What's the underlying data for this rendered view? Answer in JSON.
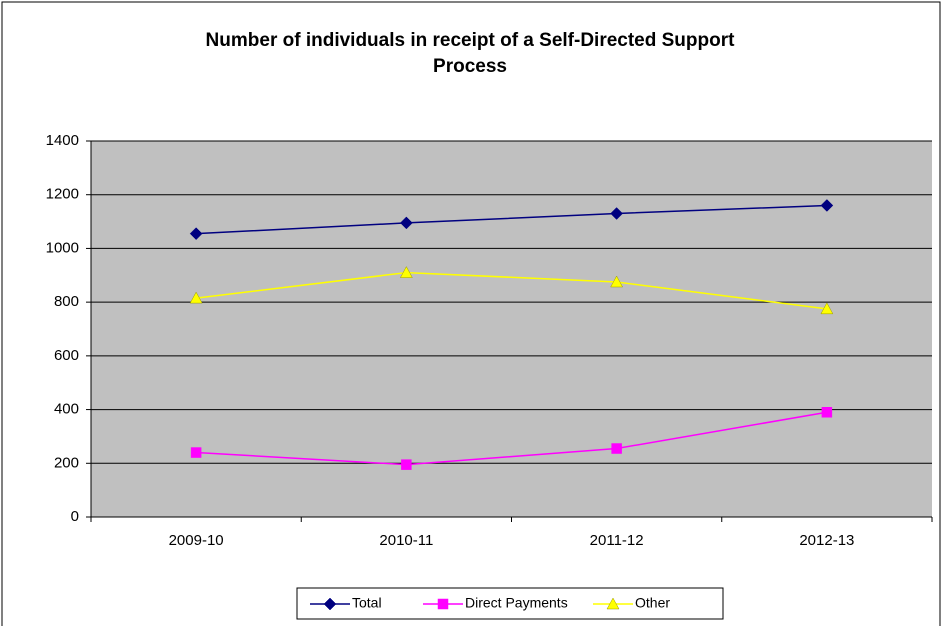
{
  "chart_data": {
    "type": "line",
    "title": "Number of individuals in receipt of a Self-Directed Support Process",
    "categories": [
      "2009-10",
      "2010-11",
      "2011-12",
      "2012-13"
    ],
    "series": [
      {
        "name": "Total",
        "color": "#000080",
        "marker": "diamond",
        "values": [
          1055,
          1095,
          1130,
          1160
        ]
      },
      {
        "name": "Direct Payments",
        "color": "#ff00ff",
        "marker": "square",
        "values": [
          240,
          195,
          255,
          390
        ]
      },
      {
        "name": "Other",
        "color": "#ffff00",
        "marker": "triangle",
        "values": [
          815,
          910,
          875,
          775
        ]
      }
    ],
    "ylim": [
      0,
      1400
    ],
    "yticks": [
      0,
      200,
      400,
      600,
      800,
      1000,
      1200,
      1400
    ],
    "grid": true,
    "legend": "bottom"
  }
}
